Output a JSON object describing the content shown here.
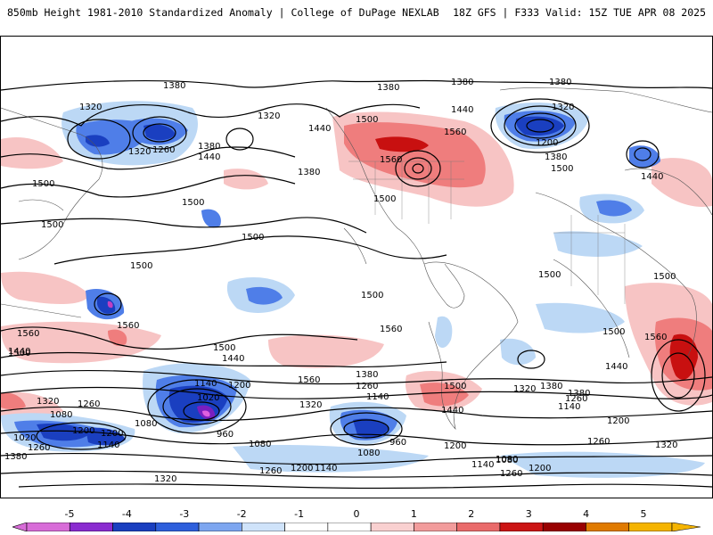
{
  "header": {
    "title_left": "850mb Height 1981-2010 Standardized Anomaly | College of DuPage NEXLAB",
    "title_right": "18Z GFS | F333 Valid: 15Z TUE APR 08 2025"
  },
  "colors": {
    "neg5": "#e060e0",
    "neg4": "#7a1fc0",
    "neg3": "#1a3fc0",
    "neg2": "#4f7ee8",
    "neg1": "#bcd8f5",
    "zero": "#ffffff",
    "pos1": "#f7c4c4",
    "pos2": "#ef7d7d",
    "pos3": "#c81010",
    "pos4": "#e04040",
    "pos5": "#f5a623"
  },
  "colorbar": {
    "labels": [
      "-5",
      "-4",
      "-3",
      "-2",
      "-1",
      "0",
      "1",
      "2",
      "3",
      "4",
      "5"
    ],
    "segments": [
      {
        "color": "#d86cd8"
      },
      {
        "color": "#8a2bd0"
      },
      {
        "color": "#1a3fc0"
      },
      {
        "color": "#2e5fdc"
      },
      {
        "color": "#7da6f0"
      },
      {
        "color": "#cfe3fa"
      },
      {
        "color": "#ffffff"
      },
      {
        "color": "#ffffff"
      },
      {
        "color": "#f9d0d0"
      },
      {
        "color": "#f29c9c"
      },
      {
        "color": "#ea6b6b"
      },
      {
        "color": "#cc1414"
      },
      {
        "color": "#990000"
      },
      {
        "color": "#e07a00"
      },
      {
        "color": "#f5b400"
      }
    ]
  },
  "map": {
    "contour_labels": [
      {
        "text": "1380"
      },
      {
        "text": "1380"
      },
      {
        "text": "1380"
      },
      {
        "text": "1380"
      },
      {
        "text": "1320"
      },
      {
        "text": "1320"
      },
      {
        "text": "1320"
      },
      {
        "text": "1440"
      },
      {
        "text": "1500"
      },
      {
        "text": "1440"
      },
      {
        "text": "1260"
      },
      {
        "text": "1320"
      },
      {
        "text": "1380"
      },
      {
        "text": "1440"
      },
      {
        "text": "1560"
      },
      {
        "text": "1560"
      },
      {
        "text": "1200"
      },
      {
        "text": "1380"
      },
      {
        "text": "1500"
      },
      {
        "text": "1500"
      },
      {
        "text": "1380"
      },
      {
        "text": "1500"
      },
      {
        "text": "1500"
      },
      {
        "text": "1440"
      },
      {
        "text": "1500"
      },
      {
        "text": "1500"
      },
      {
        "text": "1500"
      },
      {
        "text": "1500"
      },
      {
        "text": "1500"
      },
      {
        "text": "1500"
      },
      {
        "text": "1500"
      },
      {
        "text": "1560"
      },
      {
        "text": "1560"
      },
      {
        "text": "1560"
      },
      {
        "text": "1500"
      },
      {
        "text": "1440"
      },
      {
        "text": "1560"
      },
      {
        "text": "1500"
      },
      {
        "text": "1440"
      },
      {
        "text": "1560"
      },
      {
        "text": "1380"
      },
      {
        "text": "1260"
      },
      {
        "text": "1140"
      },
      {
        "text": "1320"
      },
      {
        "text": "1380"
      },
      {
        "text": "1440"
      },
      {
        "text": "1500"
      },
      {
        "text": "1440"
      },
      {
        "text": "1320"
      },
      {
        "text": "1380"
      },
      {
        "text": "1260"
      },
      {
        "text": "1140"
      },
      {
        "text": "1200"
      },
      {
        "text": "1140"
      },
      {
        "text": "1020"
      },
      {
        "text": "1200"
      },
      {
        "text": "1080"
      },
      {
        "text": "960"
      },
      {
        "text": "1080"
      },
      {
        "text": "1320"
      },
      {
        "text": "1260"
      },
      {
        "text": "1020"
      },
      {
        "text": "1080"
      },
      {
        "text": "1200"
      },
      {
        "text": "1140"
      },
      {
        "text": "1260"
      },
      {
        "text": "1380"
      },
      {
        "text": "1080"
      },
      {
        "text": "960"
      },
      {
        "text": "1200"
      },
      {
        "text": "1140"
      },
      {
        "text": "1080"
      },
      {
        "text": "1200"
      },
      {
        "text": "1260"
      },
      {
        "text": "1320"
      },
      {
        "text": "1200"
      },
      {
        "text": "1260"
      },
      {
        "text": "1320"
      },
      {
        "text": "1260"
      },
      {
        "text": "1200"
      },
      {
        "text": "1140"
      },
      {
        "text": "1080"
      }
    ]
  }
}
